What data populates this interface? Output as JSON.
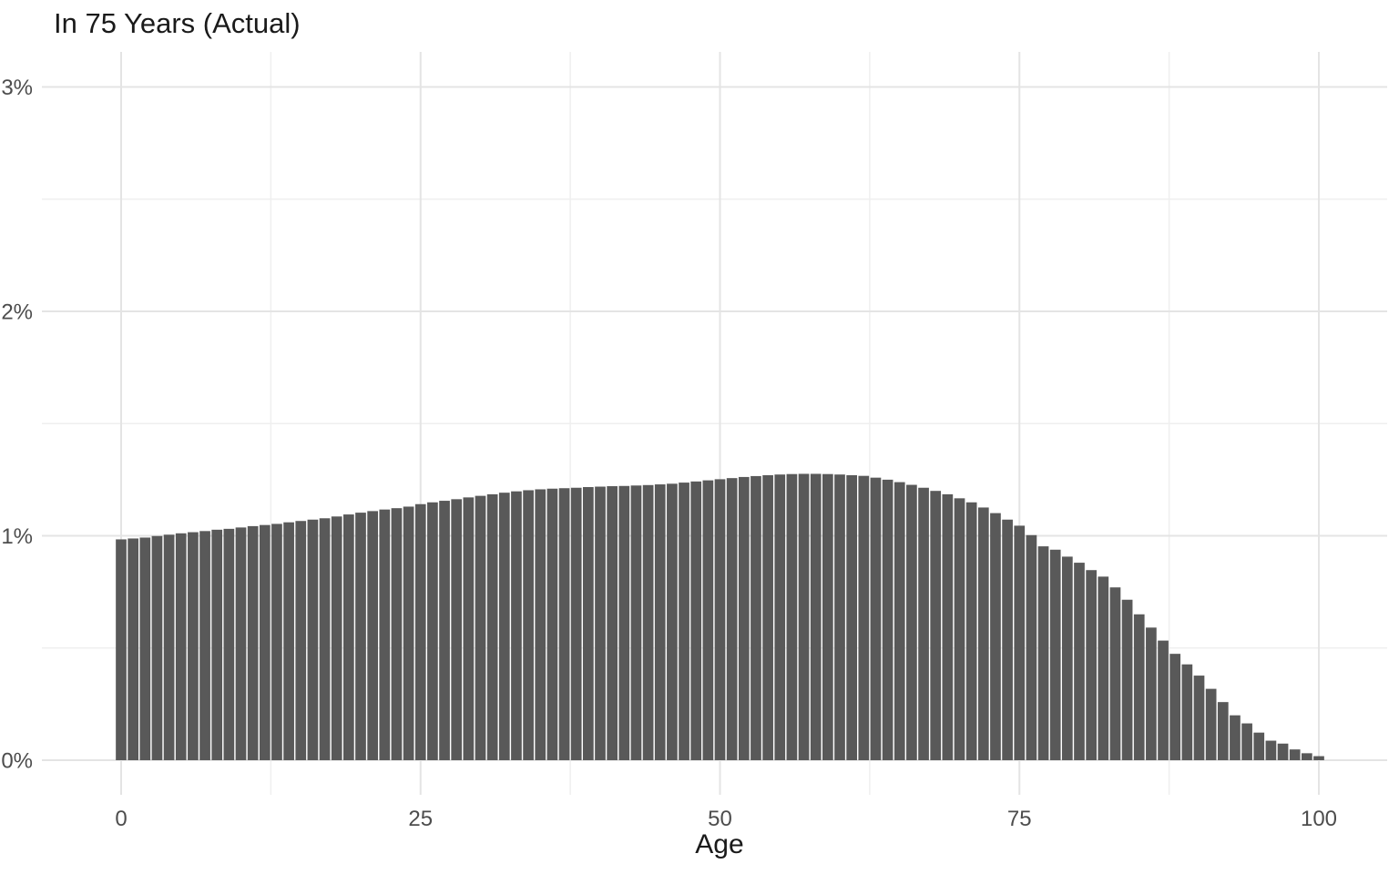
{
  "title": "In 75 Years (Actual)",
  "colors": {
    "background": "#ffffff",
    "bar": "#595959",
    "grid_major": "#e4e4e4",
    "grid_minor": "#efefef",
    "tick_label": "#4d4d4d",
    "title_text": "#1a1a1a"
  },
  "chart_data": {
    "type": "bar",
    "title": "In 75 Years (Actual)",
    "xlabel": "Age",
    "ylabel": "",
    "legend": false,
    "grid": true,
    "xlim": [
      0,
      100
    ],
    "ylim_percent": [
      0,
      3
    ],
    "x_ticks": [
      {
        "value": 0,
        "label": "0"
      },
      {
        "value": 25,
        "label": "25"
      },
      {
        "value": 50,
        "label": "50"
      },
      {
        "value": 75,
        "label": "75"
      },
      {
        "value": 100,
        "label": "100"
      }
    ],
    "x_minor_ticks": [
      12.5,
      37.5,
      62.5,
      87.5
    ],
    "y_ticks": [
      {
        "value": 0,
        "label": "0%"
      },
      {
        "value": 1,
        "label": "1%"
      },
      {
        "value": 2,
        "label": "2%"
      },
      {
        "value": 3,
        "label": "3%"
      }
    ],
    "y_minor_ticks": [
      0.5,
      1.5,
      2.5
    ],
    "x": [
      0,
      1,
      2,
      3,
      4,
      5,
      6,
      7,
      8,
      9,
      10,
      11,
      12,
      13,
      14,
      15,
      16,
      17,
      18,
      19,
      20,
      21,
      22,
      23,
      24,
      25,
      26,
      27,
      28,
      29,
      30,
      31,
      32,
      33,
      34,
      35,
      36,
      37,
      38,
      39,
      40,
      41,
      42,
      43,
      44,
      45,
      46,
      47,
      48,
      49,
      50,
      51,
      52,
      53,
      54,
      55,
      56,
      57,
      58,
      59,
      60,
      61,
      62,
      63,
      64,
      65,
      66,
      67,
      68,
      69,
      70,
      71,
      72,
      73,
      74,
      75,
      76,
      77,
      78,
      79,
      80,
      81,
      82,
      83,
      84,
      85,
      86,
      87,
      88,
      89,
      90,
      91,
      92,
      93,
      94,
      95,
      96,
      97,
      98,
      99,
      100
    ],
    "values_percent": [
      0.984,
      0.988,
      0.992,
      0.999,
      1.005,
      1.011,
      1.016,
      1.021,
      1.027,
      1.031,
      1.037,
      1.043,
      1.048,
      1.053,
      1.06,
      1.066,
      1.072,
      1.078,
      1.086,
      1.095,
      1.103,
      1.11,
      1.117,
      1.123,
      1.13,
      1.141,
      1.149,
      1.156,
      1.163,
      1.171,
      1.178,
      1.185,
      1.192,
      1.198,
      1.203,
      1.207,
      1.21,
      1.212,
      1.214,
      1.217,
      1.219,
      1.221,
      1.222,
      1.224,
      1.226,
      1.229,
      1.232,
      1.237,
      1.242,
      1.247,
      1.252,
      1.257,
      1.262,
      1.266,
      1.27,
      1.273,
      1.275,
      1.276,
      1.276,
      1.275,
      1.273,
      1.27,
      1.267,
      1.259,
      1.25,
      1.239,
      1.227,
      1.214,
      1.2,
      1.185,
      1.167,
      1.149,
      1.126,
      1.101,
      1.072,
      1.045,
      1.003,
      0.953,
      0.938,
      0.907,
      0.88,
      0.847,
      0.818,
      0.77,
      0.715,
      0.65,
      0.591,
      0.533,
      0.474,
      0.427,
      0.377,
      0.318,
      0.259,
      0.2,
      0.164,
      0.123,
      0.087,
      0.074,
      0.048,
      0.031,
      0.018
    ]
  }
}
